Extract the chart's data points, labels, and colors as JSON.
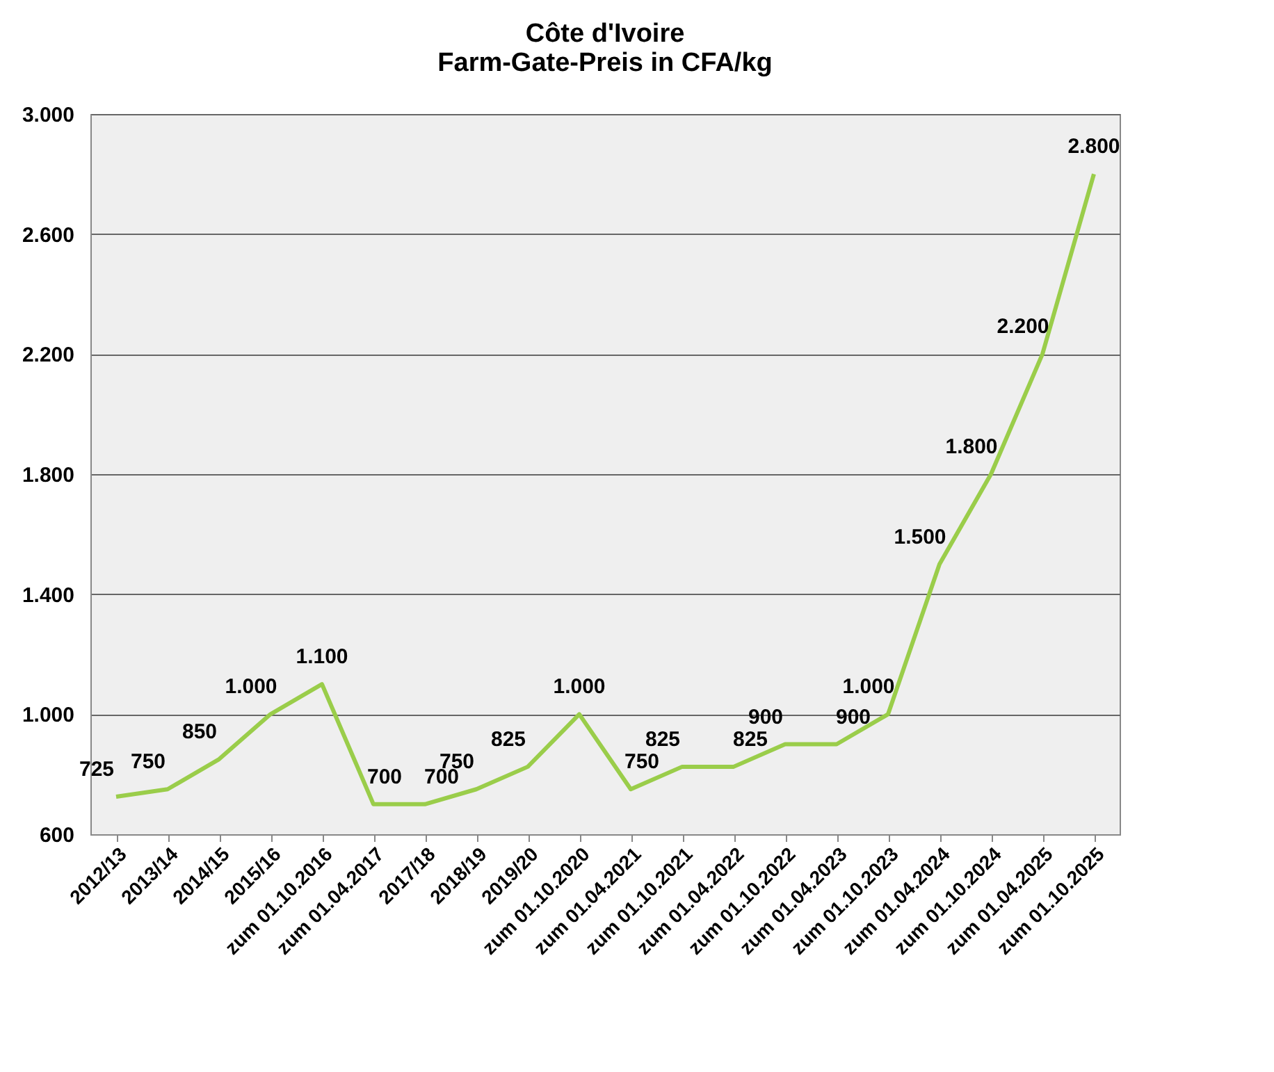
{
  "chart_data": {
    "type": "line",
    "title": [
      "Côte d'Ivoire",
      "Farm-Gate-Preis in CFA/kg"
    ],
    "categories": [
      "2012/13",
      "2013/14",
      "2014/15",
      "2015/16",
      "zum 01.10.2016",
      "zum 01.04.2017",
      "2017/18",
      "2018/19",
      "2019/20",
      "zum 01.10.2020",
      "zum 01.04.2021",
      "zum 01.10.2021",
      "zum 01.04.2022",
      "zum 01.10.2022",
      "zum 01.04.2023",
      "zum 01.10.2023",
      "zum 01.04.2024",
      "zum 01.10.2024",
      "zum 01.04.2025",
      "zum 01.10.2025"
    ],
    "series": [
      {
        "color": "#9acd4a",
        "values": [
          725,
          750,
          850,
          1000,
          1100,
          700,
          700,
          750,
          825,
          1000,
          750,
          825,
          825,
          900,
          900,
          1000,
          1500,
          1800,
          2200,
          2800
        ],
        "value_labels": [
          "725",
          "750",
          "850",
          "1.000",
          "1.100",
          "700",
          "700",
          "750",
          "825",
          "1.000",
          "750",
          "825",
          "825",
          "900",
          "900",
          "1.000",
          "1.500",
          "1.800",
          "2.200",
          "2.800"
        ]
      }
    ],
    "ylim": [
      600,
      3000
    ],
    "yticks": [
      {
        "value": 600,
        "label": "600"
      },
      {
        "value": 1000,
        "label": "1.000"
      },
      {
        "value": 1400,
        "label": "1.400"
      },
      {
        "value": 1800,
        "label": "1.800"
      },
      {
        "value": 2200,
        "label": "2.200"
      },
      {
        "value": 2600,
        "label": "2.600"
      },
      {
        "value": 3000,
        "label": "3.000"
      }
    ],
    "grid": "y",
    "marker": "none",
    "line_style": "solid"
  }
}
